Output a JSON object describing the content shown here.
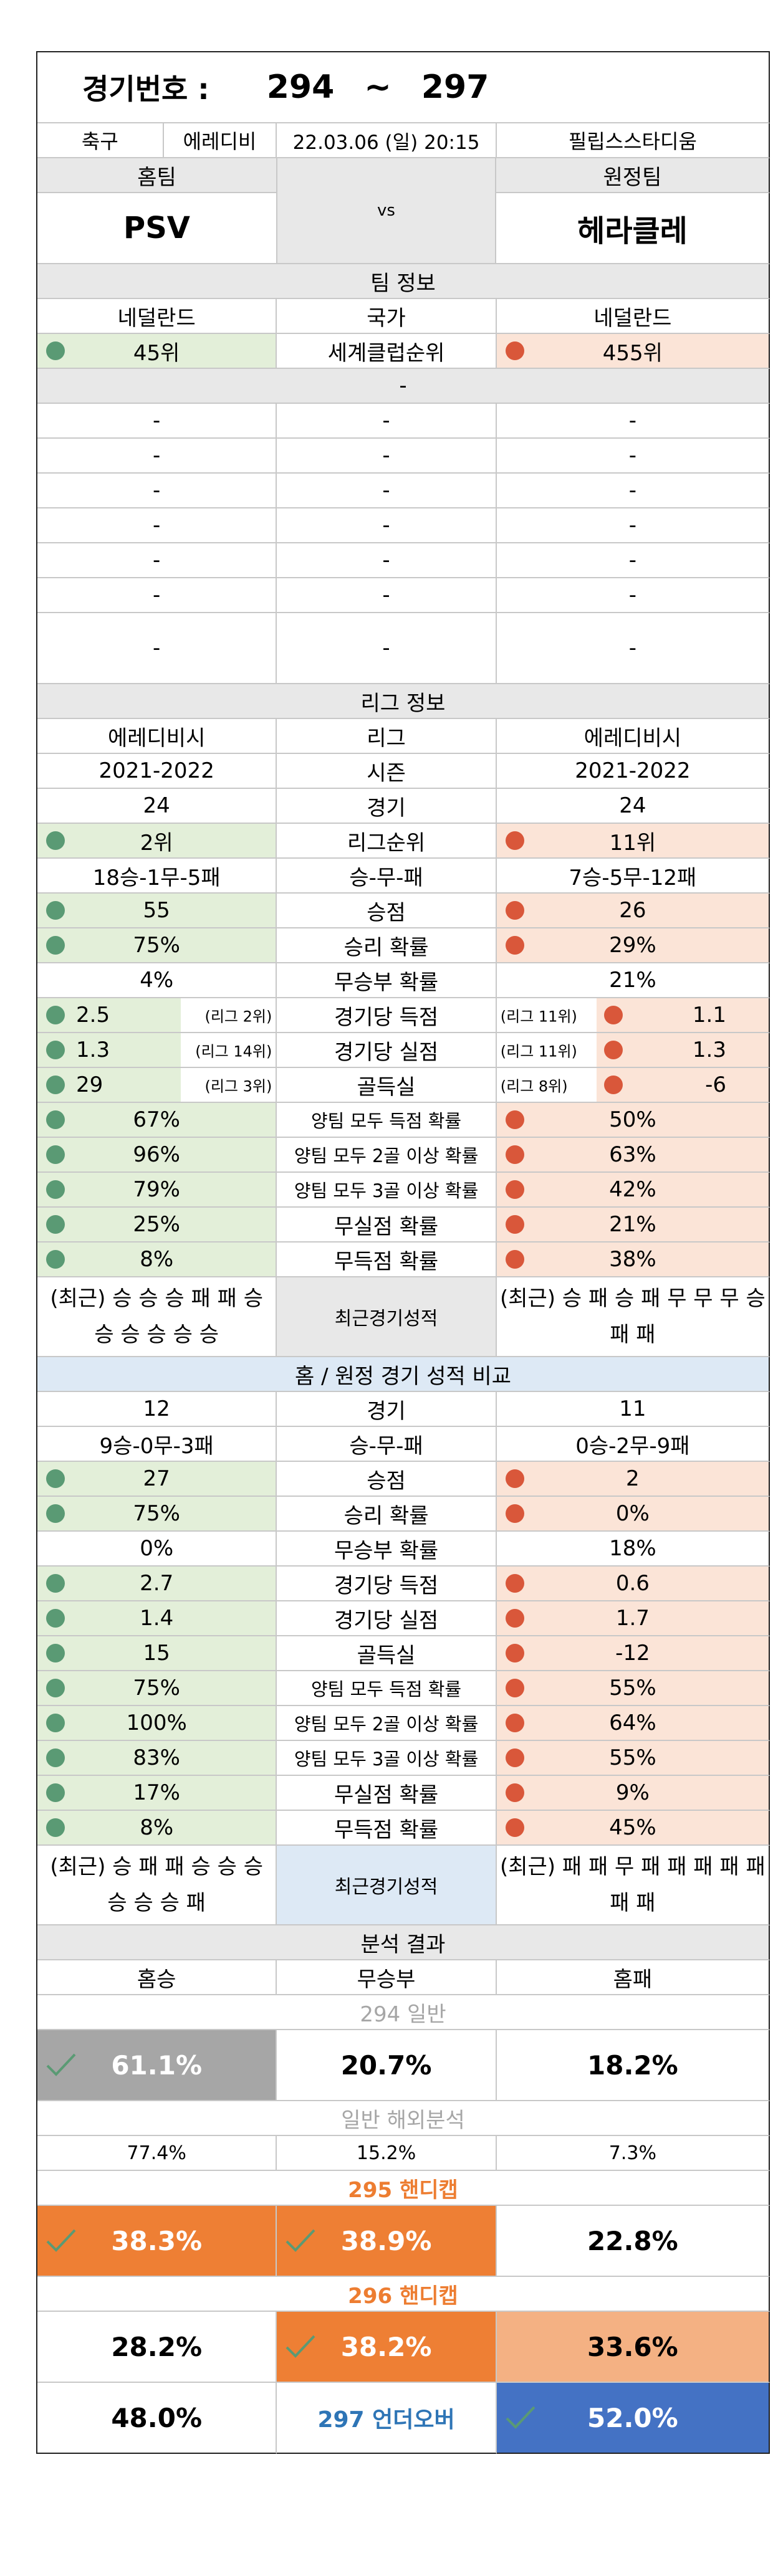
{
  "header": {
    "label": "경기번호 :",
    "from": "294",
    "sep": "~",
    "to": "297"
  },
  "match": {
    "sport": "축구",
    "league": "에레디비",
    "datetime": "22.03.06 (일) 20:15",
    "stadium": "필립스스타디움",
    "home_label": "홈팀",
    "away_label": "원정팀",
    "home": "PSV",
    "vs": "vs",
    "away": "헤라클레"
  },
  "team_info": {
    "title": "팀 정보",
    "country": {
      "home": "네덜란드",
      "label": "국가",
      "away": "네덜란드"
    },
    "rank": {
      "home": "45위",
      "label": "세계클럽순위",
      "away": "455위"
    },
    "dash": "-",
    "empty_rows": 7
  },
  "league_info": {
    "title": "리그 정보",
    "rows": [
      {
        "home": "에레디비시",
        "label": "리그",
        "away": "에레디비시",
        "home_style": "",
        "away_style": ""
      },
      {
        "home": "2021-2022",
        "label": "시즌",
        "away": "2021-2022",
        "home_style": "",
        "away_style": ""
      },
      {
        "home": "24",
        "label": "경기",
        "away": "24",
        "home_style": "",
        "away_style": ""
      },
      {
        "home": "2위",
        "label": "리그순위",
        "away": "11위",
        "home_style": "green",
        "away_style": "salmon"
      },
      {
        "home": "18승-1무-5패",
        "label": "승-무-패",
        "away": "7승-5무-12패",
        "home_style": "",
        "away_style": ""
      },
      {
        "home": "55",
        "label": "승점",
        "away": "26",
        "home_style": "green",
        "away_style": "salmon"
      },
      {
        "home": "75%",
        "label": "승리 확률",
        "away": "29%",
        "home_style": "green",
        "away_style": "salmon"
      },
      {
        "home": "4%",
        "label": "무승부 확률",
        "away": "21%",
        "home_style": "",
        "away_style": ""
      },
      {
        "home": "2.5",
        "label": "경기당 득점",
        "away": "1.1",
        "home_style": "green",
        "away_style": "salmon",
        "home_note": "(리그 2위)",
        "away_note": "(리그 11위)"
      },
      {
        "home": "1.3",
        "label": "경기당 실점",
        "away": "1.3",
        "home_style": "green",
        "away_style": "salmon",
        "home_note": "(리그 14위)",
        "away_note": "(리그 11위)"
      },
      {
        "home": "29",
        "label": "골득실",
        "away": "-6",
        "home_style": "green",
        "away_style": "salmon",
        "home_note": "(리그 3위)",
        "away_note": "(리그 8위)"
      },
      {
        "home": "67%",
        "label": "양팀 모두 득점 확률",
        "away": "50%",
        "home_style": "green",
        "away_style": "salmon"
      },
      {
        "home": "96%",
        "label": "양팀 모두 2골 이상 확률",
        "away": "63%",
        "home_style": "green",
        "away_style": "salmon"
      },
      {
        "home": "79%",
        "label": "양팀 모두 3골 이상 확률",
        "away": "42%",
        "home_style": "green",
        "away_style": "salmon"
      },
      {
        "home": "25%",
        "label": "무실점 확률",
        "away": "21%",
        "home_style": "green",
        "away_style": "salmon"
      },
      {
        "home": "8%",
        "label": "무득점 확률",
        "away": "38%",
        "home_style": "green",
        "away_style": "salmon"
      }
    ],
    "recent": {
      "home": "(최근) 승 승 승 패 패 승 승 승 승 승 승",
      "label": "최근경기성적",
      "away": "(최근) 승 패 승 패 무 무 무 승 패 패"
    }
  },
  "compare": {
    "title": "홈 / 원정 경기 성적 비교",
    "rows": [
      {
        "home": "12",
        "label": "경기",
        "away": "11",
        "home_style": "",
        "away_style": ""
      },
      {
        "home": "9승-0무-3패",
        "label": "승-무-패",
        "away": "0승-2무-9패",
        "home_style": "",
        "away_style": ""
      },
      {
        "home": "27",
        "label": "승점",
        "away": "2",
        "home_style": "green",
        "away_style": "salmon"
      },
      {
        "home": "75%",
        "label": "승리 확률",
        "away": "0%",
        "home_style": "green",
        "away_style": "salmon"
      },
      {
        "home": "0%",
        "label": "무승부 확률",
        "away": "18%",
        "home_style": "",
        "away_style": ""
      },
      {
        "home": "2.7",
        "label": "경기당 득점",
        "away": "0.6",
        "home_style": "green",
        "away_style": "salmon"
      },
      {
        "home": "1.4",
        "label": "경기당 실점",
        "away": "1.7",
        "home_style": "green",
        "away_style": "salmon"
      },
      {
        "home": "15",
        "label": "골득실",
        "away": "-12",
        "home_style": "green",
        "away_style": "salmon"
      },
      {
        "home": "75%",
        "label": "양팀 모두 득점 확률",
        "away": "55%",
        "home_style": "green",
        "away_style": "salmon"
      },
      {
        "home": "100%",
        "label": "양팀 모두 2골 이상 확률",
        "away": "64%",
        "home_style": "green",
        "away_style": "salmon"
      },
      {
        "home": "83%",
        "label": "양팀 모두 3골 이상 확률",
        "away": "55%",
        "home_style": "green",
        "away_style": "salmon"
      },
      {
        "home": "17%",
        "label": "무실점 확률",
        "away": "9%",
        "home_style": "green",
        "away_style": "salmon"
      },
      {
        "home": "8%",
        "label": "무득점 확률",
        "away": "45%",
        "home_style": "green",
        "away_style": "salmon"
      }
    ],
    "recent": {
      "home": "(최근) 승 패 패 승 승 승 승 승 승 패",
      "label": "최근경기성적",
      "away": "(최근) 패 패 무 패 패 패 패 패 패 패"
    }
  },
  "analysis": {
    "title": "분석 결과",
    "col_home": "홈승",
    "col_draw": "무승부",
    "col_away": "홈패",
    "general_title": "294 일반",
    "general": {
      "home": "61.1%",
      "draw": "20.7%",
      "away": "18.2%"
    },
    "overseas_title": "일반 해외분석",
    "overseas": {
      "home": "77.4%",
      "draw": "15.2%",
      "away": "7.3%"
    },
    "h295_title": "295 핸디캡",
    "h295": {
      "home": "38.3%",
      "draw": "38.9%",
      "away": "22.8%"
    },
    "h296_title": "296 핸디캡",
    "h296": {
      "home": "28.2%",
      "draw": "38.2%",
      "away": "33.6%"
    },
    "uo_title": "297 언더오버",
    "uo": {
      "under": "48.0%",
      "over": "52.0%"
    }
  },
  "colors": {
    "green_fill": "#e3efd9",
    "salmon_fill": "#fbe4d7",
    "green_dot": "#5a9a74",
    "red_dot": "#d9573a",
    "orange": "#ee7f34",
    "gray": "#a6a6a6",
    "peach": "#f4b183",
    "blue": "#4472c4",
    "check": "#5a9a74"
  }
}
